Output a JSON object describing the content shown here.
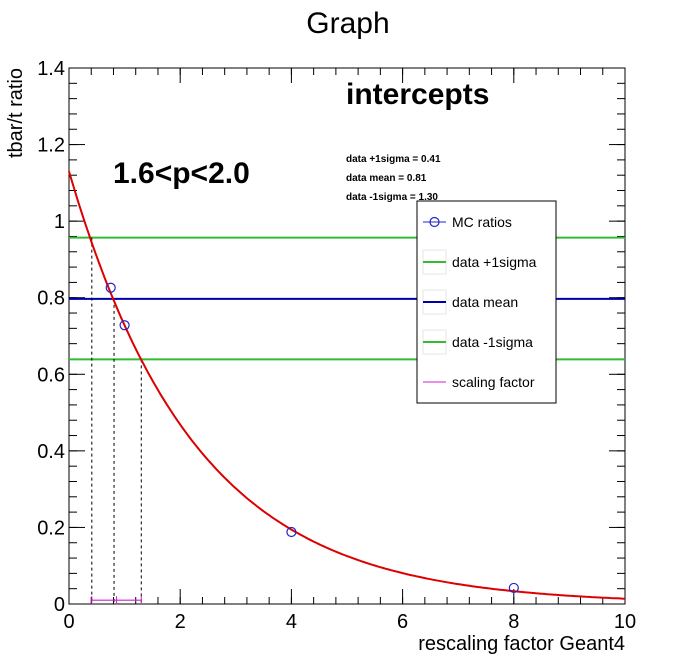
{
  "chart_data": {
    "type": "scatter",
    "title": "Graph",
    "xlabel": "rescaling factor Geant4",
    "ylabel": "tbar/t ratio",
    "xlim": [
      0,
      10
    ],
    "ylim": [
      0,
      1.4
    ],
    "x_ticks": [
      0,
      2,
      4,
      6,
      8,
      10
    ],
    "y_ticks": [
      0,
      0.2,
      0.4,
      0.6,
      0.8,
      1,
      1.2,
      1.4
    ],
    "x_tick_labels": [
      "0",
      "2",
      "4",
      "6",
      "8",
      "10"
    ],
    "y_tick_labels": [
      "0",
      "0.2",
      "0.4",
      "0.6",
      "0.8",
      "1",
      "1.2",
      "1.4"
    ],
    "series": [
      {
        "name": "MC ratios",
        "kind": "points",
        "color": "#2222cc",
        "x": [
          0.75,
          1.0,
          4.0,
          8.0
        ],
        "y": [
          0.826,
          0.728,
          0.188,
          0.042
        ]
      },
      {
        "name": "data +1sigma",
        "kind": "hline",
        "color": "#33bb33",
        "y": 0.957
      },
      {
        "name": "data mean",
        "kind": "hline",
        "color": "#0000aa",
        "y": 0.797
      },
      {
        "name": "data -1sigma",
        "kind": "hline",
        "color": "#33bb33",
        "y": 0.639
      },
      {
        "name": "scaling factor",
        "kind": "hbar",
        "color": "#cc22cc",
        "x_from": 0.41,
        "x_to": 1.3,
        "y": 0.01
      }
    ],
    "fit_curve": {
      "color": "#dd0000",
      "x": [
        0,
        10
      ],
      "form": "a*exp(-b*x)",
      "a": 1.13,
      "b": 0.44
    },
    "intercepts": {
      "x": [
        0.41,
        0.81,
        1.3
      ],
      "y": [
        0.957,
        0.797,
        0.639
      ]
    },
    "annotations": {
      "momentum": "1.6<p<2.0",
      "heading": "intercepts",
      "lines": [
        "data +1sigma = 0.41",
        "data mean = 0.81",
        "data -1sigma = 1.30"
      ]
    },
    "legend_position": "right"
  }
}
